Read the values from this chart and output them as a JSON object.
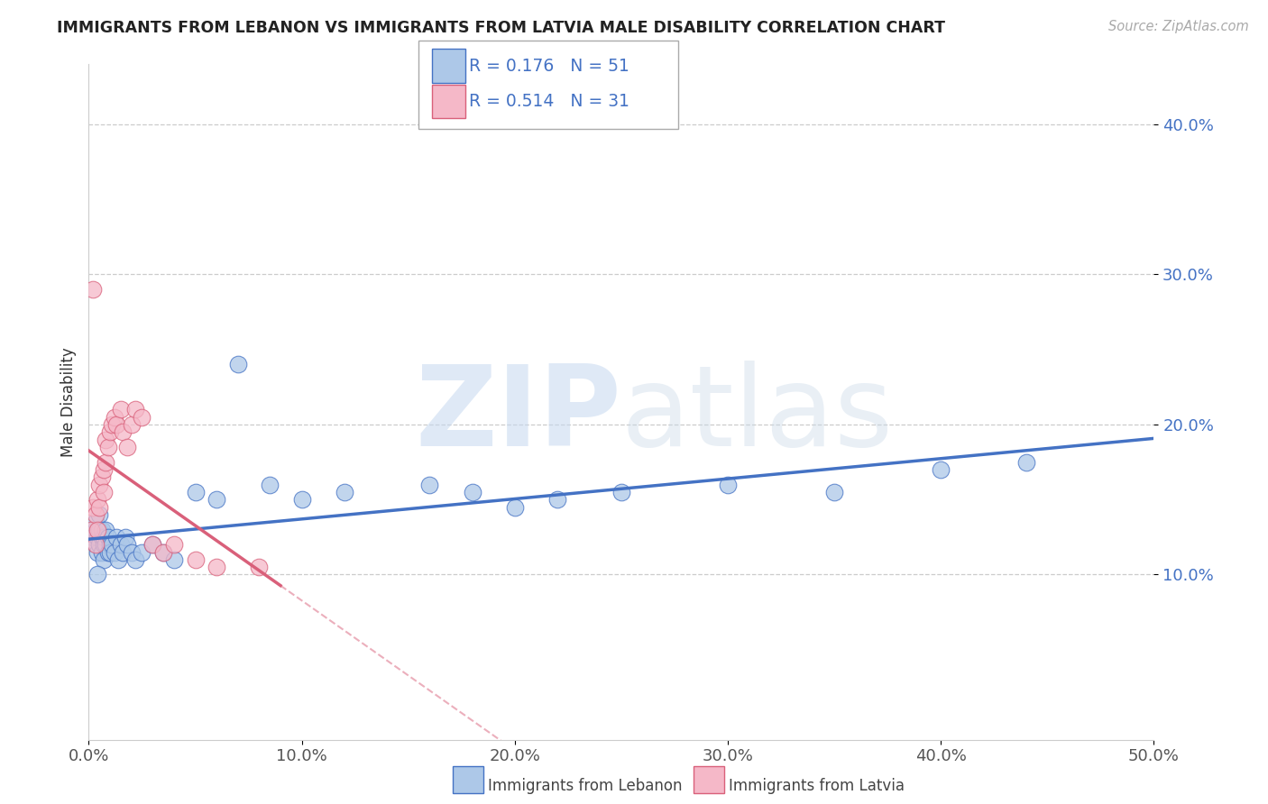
{
  "title": "IMMIGRANTS FROM LEBANON VS IMMIGRANTS FROM LATVIA MALE DISABILITY CORRELATION CHART",
  "source": "Source: ZipAtlas.com",
  "ylabel": "Male Disability",
  "xlim": [
    0.0,
    0.5
  ],
  "ylim": [
    -0.01,
    0.44
  ],
  "xtick_labels": [
    "0.0%",
    "10.0%",
    "20.0%",
    "30.0%",
    "40.0%",
    "50.0%"
  ],
  "xtick_vals": [
    0.0,
    0.1,
    0.2,
    0.3,
    0.4,
    0.5
  ],
  "ytick_labels": [
    "10.0%",
    "20.0%",
    "30.0%",
    "40.0%"
  ],
  "ytick_vals": [
    0.1,
    0.2,
    0.3,
    0.4
  ],
  "legend_labels": [
    "Immigrants from Lebanon",
    "Immigrants from Latvia"
  ],
  "R_lebanon": 0.176,
  "N_lebanon": 51,
  "R_latvia": 0.514,
  "N_latvia": 31,
  "color_lebanon": "#adc8e8",
  "color_latvia": "#f5b8c8",
  "line_color_lebanon": "#4472c4",
  "line_color_latvia": "#d9607a",
  "background_color": "#ffffff",
  "lebanon_x": [
    0.001,
    0.002,
    0.003,
    0.003,
    0.004,
    0.004,
    0.005,
    0.005,
    0.005,
    0.006,
    0.006,
    0.006,
    0.007,
    0.007,
    0.007,
    0.008,
    0.008,
    0.009,
    0.009,
    0.01,
    0.01,
    0.011,
    0.012,
    0.013,
    0.014,
    0.015,
    0.016,
    0.017,
    0.018,
    0.02,
    0.022,
    0.025,
    0.03,
    0.035,
    0.04,
    0.05,
    0.06,
    0.07,
    0.085,
    0.1,
    0.12,
    0.16,
    0.2,
    0.25,
    0.3,
    0.35,
    0.4,
    0.44,
    0.18,
    0.22,
    0.004
  ],
  "lebanon_y": [
    0.13,
    0.125,
    0.12,
    0.135,
    0.115,
    0.125,
    0.13,
    0.12,
    0.14,
    0.125,
    0.115,
    0.13,
    0.12,
    0.125,
    0.11,
    0.12,
    0.13,
    0.115,
    0.125,
    0.12,
    0.115,
    0.12,
    0.115,
    0.125,
    0.11,
    0.12,
    0.115,
    0.125,
    0.12,
    0.115,
    0.11,
    0.115,
    0.12,
    0.115,
    0.11,
    0.155,
    0.15,
    0.24,
    0.16,
    0.15,
    0.155,
    0.16,
    0.145,
    0.155,
    0.16,
    0.155,
    0.17,
    0.175,
    0.155,
    0.15,
    0.1
  ],
  "latvia_x": [
    0.001,
    0.002,
    0.003,
    0.003,
    0.004,
    0.004,
    0.005,
    0.005,
    0.006,
    0.007,
    0.007,
    0.008,
    0.008,
    0.009,
    0.01,
    0.011,
    0.012,
    0.013,
    0.015,
    0.016,
    0.018,
    0.02,
    0.022,
    0.025,
    0.03,
    0.035,
    0.04,
    0.05,
    0.06,
    0.08,
    0.002
  ],
  "latvia_y": [
    0.13,
    0.145,
    0.12,
    0.14,
    0.13,
    0.15,
    0.145,
    0.16,
    0.165,
    0.155,
    0.17,
    0.175,
    0.19,
    0.185,
    0.195,
    0.2,
    0.205,
    0.2,
    0.21,
    0.195,
    0.185,
    0.2,
    0.21,
    0.205,
    0.12,
    0.115,
    0.12,
    0.11,
    0.105,
    0.105,
    0.29
  ]
}
